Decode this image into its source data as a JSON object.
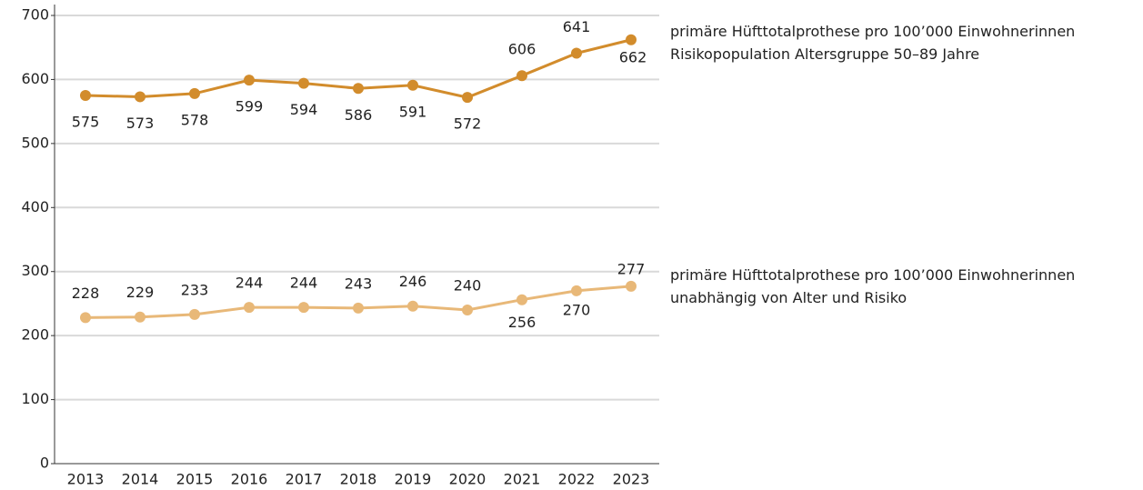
{
  "chart_data": {
    "type": "line",
    "categories": [
      "2013",
      "2014",
      "2015",
      "2016",
      "2017",
      "2018",
      "2019",
      "2020",
      "2021",
      "2022",
      "2023"
    ],
    "series": [
      {
        "name": "primäre Hüfttotalprothese pro 100’000 Einwohnerinnen Risikopopulation Altersgruppe 50–89 Jahre",
        "color": "#d28c2c",
        "values": [
          575,
          573,
          578,
          599,
          594,
          586,
          591,
          572,
          606,
          641,
          662
        ]
      },
      {
        "name": "primäre Hüfttotalprothese pro 100’000 Einwohnerinnen unabhängig von Alter und Risiko",
        "color": "#e8b878",
        "values": [
          228,
          229,
          233,
          244,
          244,
          243,
          246,
          240,
          256,
          270,
          277
        ]
      }
    ],
    "ylim": [
      0,
      700
    ],
    "yticks": [
      0,
      100,
      200,
      300,
      400,
      500,
      600,
      700
    ],
    "grid": true
  }
}
